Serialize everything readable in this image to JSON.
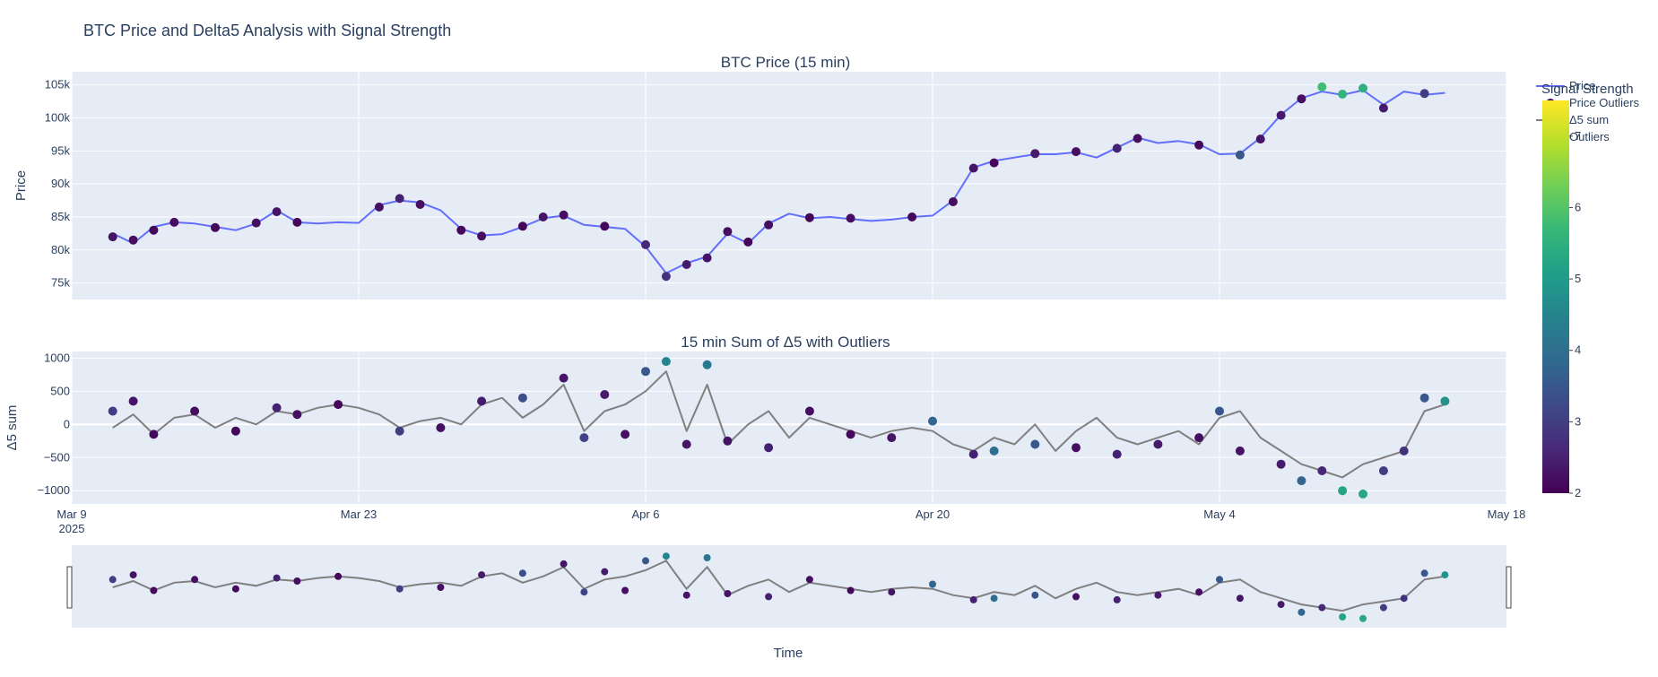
{
  "figure": {
    "title": "BTC Price and Delta5 Analysis with Signal Strength",
    "xlabel": "Time"
  },
  "colors": {
    "plot_bg": "#e5ecf6",
    "grid": "#ffffff",
    "text": "#2a3f5f",
    "price_line": "#636efa",
    "delta_line": "#808080",
    "rangeslider_border": "#444444"
  },
  "x_axis": {
    "type": "date",
    "range": [
      "2025-03-09",
      "2025-05-18"
    ],
    "ticks": [
      {
        "date": "2025-03-09",
        "label": "Mar 9",
        "sublabel": "2025"
      },
      {
        "date": "2025-03-23",
        "label": "Mar 23",
        "sublabel": ""
      },
      {
        "date": "2025-04-06",
        "label": "Apr 6",
        "sublabel": ""
      },
      {
        "date": "2025-04-20",
        "label": "Apr 20",
        "sublabel": ""
      },
      {
        "date": "2025-05-04",
        "label": "May 4",
        "sublabel": ""
      },
      {
        "date": "2025-05-18",
        "label": "May 18",
        "sublabel": ""
      }
    ],
    "rangeslider": true
  },
  "legend": {
    "position": "top-right",
    "items": [
      {
        "label": "Price",
        "symbol": "line",
        "color": "#636efa"
      },
      {
        "label": "Price Outliers",
        "symbol": "marker",
        "color": "#440154"
      },
      {
        "label": "Δ5 sum",
        "symbol": "line",
        "color": "#808080"
      },
      {
        "label": "Outliers",
        "symbol": "marker",
        "color": "#440154"
      }
    ]
  },
  "colorbar": {
    "title": "Signal Strength",
    "colorscale": "Viridis",
    "range": [
      2,
      7.5
    ],
    "ticks": [
      {
        "value": 2,
        "label": "2"
      },
      {
        "value": 3,
        "label": "3"
      },
      {
        "value": 4,
        "label": "4"
      },
      {
        "value": 5,
        "label": "5"
      },
      {
        "value": 6,
        "label": "6"
      },
      {
        "value": 7,
        "label": "7"
      }
    ]
  },
  "chart_data": [
    {
      "type": "line",
      "title": "BTC Price (15 min)",
      "ylabel": "Price",
      "ylim": [
        72500,
        107000
      ],
      "yticks": [
        {
          "value": 75000,
          "label": "75k"
        },
        {
          "value": 80000,
          "label": "80k"
        },
        {
          "value": 85000,
          "label": "85k"
        },
        {
          "value": 90000,
          "label": "90k"
        },
        {
          "value": 95000,
          "label": "95k"
        },
        {
          "value": 100000,
          "label": "100k"
        },
        {
          "value": 105000,
          "label": "105k"
        }
      ],
      "series": [
        {
          "name": "Price",
          "style": "line",
          "x": [
            "2025-03-11",
            "2025-03-12",
            "2025-03-13",
            "2025-03-14",
            "2025-03-15",
            "2025-03-16",
            "2025-03-17",
            "2025-03-18",
            "2025-03-19",
            "2025-03-20",
            "2025-03-21",
            "2025-03-22",
            "2025-03-23",
            "2025-03-24",
            "2025-03-25",
            "2025-03-26",
            "2025-03-27",
            "2025-03-28",
            "2025-03-29",
            "2025-03-30",
            "2025-03-31",
            "2025-04-01",
            "2025-04-02",
            "2025-04-03",
            "2025-04-04",
            "2025-04-05",
            "2025-04-06",
            "2025-04-07",
            "2025-04-08",
            "2025-04-09",
            "2025-04-10",
            "2025-04-11",
            "2025-04-12",
            "2025-04-13",
            "2025-04-14",
            "2025-04-15",
            "2025-04-16",
            "2025-04-17",
            "2025-04-18",
            "2025-04-19",
            "2025-04-20",
            "2025-04-21",
            "2025-04-22",
            "2025-04-23",
            "2025-04-24",
            "2025-04-25",
            "2025-04-26",
            "2025-04-27",
            "2025-04-28",
            "2025-04-29",
            "2025-04-30",
            "2025-05-01",
            "2025-05-02",
            "2025-05-03",
            "2025-05-04",
            "2025-05-05",
            "2025-05-06",
            "2025-05-07",
            "2025-05-08",
            "2025-05-09",
            "2025-05-10",
            "2025-05-11",
            "2025-05-12",
            "2025-05-13",
            "2025-05-14",
            "2025-05-15"
          ],
          "values": [
            82500,
            81000,
            83500,
            84200,
            84000,
            83500,
            83000,
            84000,
            86000,
            84200,
            84000,
            84200,
            84100,
            86800,
            87500,
            87200,
            86000,
            83200,
            82200,
            82400,
            83500,
            84800,
            85200,
            83800,
            83500,
            83200,
            80500,
            76500,
            78000,
            79000,
            82500,
            81000,
            84000,
            85500,
            84800,
            85000,
            84700,
            84400,
            84600,
            85000,
            85200,
            87500,
            92500,
            93500,
            94000,
            94500,
            94500,
            94800,
            94000,
            95500,
            97000,
            96200,
            96500,
            96000,
            94500,
            94600,
            97000,
            100500,
            103000,
            104000,
            103500,
            104200,
            102000,
            104000,
            103500,
            103800
          ]
        },
        {
          "name": "Price Outliers",
          "style": "markers",
          "x": [
            "2025-03-11",
            "2025-03-12",
            "2025-03-13",
            "2025-03-14",
            "2025-03-16",
            "2025-03-18",
            "2025-03-19",
            "2025-03-20",
            "2025-03-24",
            "2025-03-25",
            "2025-03-26",
            "2025-03-28",
            "2025-03-29",
            "2025-03-31",
            "2025-04-01",
            "2025-04-02",
            "2025-04-04",
            "2025-04-06",
            "2025-04-07",
            "2025-04-08",
            "2025-04-09",
            "2025-04-10",
            "2025-04-11",
            "2025-04-12",
            "2025-04-14",
            "2025-04-16",
            "2025-04-19",
            "2025-04-21",
            "2025-04-22",
            "2025-04-23",
            "2025-04-25",
            "2025-04-27",
            "2025-04-29",
            "2025-04-30",
            "2025-05-03",
            "2025-05-05",
            "2025-05-06",
            "2025-05-07",
            "2025-05-08",
            "2025-05-09",
            "2025-05-10",
            "2025-05-11",
            "2025-05-12",
            "2025-05-14"
          ],
          "values": [
            82000,
            81500,
            83000,
            84200,
            83400,
            84100,
            85800,
            84200,
            86500,
            87800,
            86900,
            83000,
            82100,
            83600,
            85000,
            85300,
            83600,
            80800,
            76000,
            77800,
            78800,
            82800,
            81200,
            83800,
            84900,
            84800,
            85000,
            87300,
            92400,
            93200,
            94600,
            94900,
            95400,
            96900,
            95900,
            94400,
            96800,
            100400,
            102900,
            104700,
            103600,
            104500,
            101500,
            103700
          ],
          "strength": [
            2.3,
            2.2,
            2.1,
            2.2,
            2.1,
            2.2,
            2.3,
            2.1,
            2.2,
            2.5,
            2.2,
            2.1,
            2.2,
            2.1,
            2.3,
            2.2,
            2.1,
            2.6,
            2.8,
            2.4,
            2.3,
            2.2,
            2.1,
            2.2,
            2.1,
            2.2,
            2.1,
            2.2,
            2.3,
            2.1,
            2.4,
            2.2,
            2.5,
            2.2,
            2.1,
            3.5,
            2.3,
            2.4,
            2.2,
            5.8,
            5.6,
            5.5,
            2.4,
            3.0
          ]
        }
      ]
    },
    {
      "type": "line",
      "title": "15 min Sum of Δ5 with Outliers",
      "ylabel": "Δ5 sum",
      "ylim": [
        -1200,
        1100
      ],
      "yticks": [
        {
          "value": -1000,
          "label": "−1000"
        },
        {
          "value": -500,
          "label": "−500"
        },
        {
          "value": 0,
          "label": "0"
        },
        {
          "value": 500,
          "label": "500"
        },
        {
          "value": 1000,
          "label": "1000"
        }
      ],
      "series": [
        {
          "name": "Δ5 sum",
          "style": "line",
          "x": [
            "2025-03-11",
            "2025-03-12",
            "2025-03-13",
            "2025-03-14",
            "2025-03-15",
            "2025-03-16",
            "2025-03-17",
            "2025-03-18",
            "2025-03-19",
            "2025-03-20",
            "2025-03-21",
            "2025-03-22",
            "2025-03-23",
            "2025-03-24",
            "2025-03-25",
            "2025-03-26",
            "2025-03-27",
            "2025-03-28",
            "2025-03-29",
            "2025-03-30",
            "2025-03-31",
            "2025-04-01",
            "2025-04-02",
            "2025-04-03",
            "2025-04-04",
            "2025-04-05",
            "2025-04-06",
            "2025-04-07",
            "2025-04-08",
            "2025-04-09",
            "2025-04-10",
            "2025-04-11",
            "2025-04-12",
            "2025-04-13",
            "2025-04-14",
            "2025-04-15",
            "2025-04-16",
            "2025-04-17",
            "2025-04-18",
            "2025-04-19",
            "2025-04-20",
            "2025-04-21",
            "2025-04-22",
            "2025-04-23",
            "2025-04-24",
            "2025-04-25",
            "2025-04-26",
            "2025-04-27",
            "2025-04-28",
            "2025-04-29",
            "2025-04-30",
            "2025-05-01",
            "2025-05-02",
            "2025-05-03",
            "2025-05-04",
            "2025-05-05",
            "2025-05-06",
            "2025-05-07",
            "2025-05-08",
            "2025-05-09",
            "2025-05-10",
            "2025-05-11",
            "2025-05-12",
            "2025-05-13",
            "2025-05-14",
            "2025-05-15"
          ],
          "values": [
            -50,
            150,
            -150,
            100,
            150,
            -50,
            100,
            0,
            200,
            150,
            250,
            300,
            250,
            150,
            -50,
            50,
            100,
            0,
            300,
            400,
            100,
            300,
            600,
            -100,
            200,
            300,
            500,
            800,
            -100,
            600,
            -300,
            0,
            200,
            -200,
            100,
            0,
            -100,
            -200,
            -100,
            -50,
            -100,
            -300,
            -400,
            -200,
            -300,
            0,
            -400,
            -100,
            100,
            -200,
            -300,
            -200,
            -100,
            -300,
            100,
            200,
            -200,
            -400,
            -600,
            -700,
            -800,
            -600,
            -500,
            -400,
            200,
            300
          ]
        },
        {
          "name": "Outliers",
          "style": "markers",
          "x": [
            "2025-03-11",
            "2025-03-12",
            "2025-03-13",
            "2025-03-15",
            "2025-03-17",
            "2025-03-19",
            "2025-03-20",
            "2025-03-22",
            "2025-03-25",
            "2025-03-27",
            "2025-03-29",
            "2025-03-31",
            "2025-04-02",
            "2025-04-03",
            "2025-04-04",
            "2025-04-05",
            "2025-04-06",
            "2025-04-07",
            "2025-04-08",
            "2025-04-09",
            "2025-04-10",
            "2025-04-12",
            "2025-04-14",
            "2025-04-16",
            "2025-04-18",
            "2025-04-20",
            "2025-04-22",
            "2025-04-23",
            "2025-04-25",
            "2025-04-27",
            "2025-04-29",
            "2025-05-01",
            "2025-05-03",
            "2025-05-04",
            "2025-05-05",
            "2025-05-07",
            "2025-05-08",
            "2025-05-09",
            "2025-05-10",
            "2025-05-11",
            "2025-05-12",
            "2025-05-13",
            "2025-05-14",
            "2025-05-15"
          ],
          "values": [
            200,
            350,
            -150,
            200,
            -100,
            250,
            150,
            300,
            -100,
            -50,
            350,
            400,
            700,
            -200,
            450,
            -150,
            800,
            950,
            -300,
            900,
            -250,
            -350,
            200,
            -150,
            -200,
            50,
            -450,
            -400,
            -300,
            -350,
            -450,
            -300,
            -200,
            200,
            -400,
            -600,
            -850,
            -700,
            -1000,
            -1050,
            -700,
            -400,
            400,
            350
          ],
          "strength": [
            3.0,
            2.3,
            2.1,
            2.2,
            2.1,
            2.5,
            2.2,
            2.1,
            3.0,
            2.2,
            2.4,
            3.3,
            2.3,
            3.1,
            2.4,
            2.2,
            3.5,
            4.5,
            2.3,
            4.2,
            2.3,
            2.5,
            2.2,
            2.1,
            2.3,
            3.8,
            2.5,
            4.0,
            3.5,
            2.2,
            2.5,
            2.4,
            2.2,
            3.5,
            2.3,
            2.4,
            3.8,
            2.6,
            5.2,
            5.3,
            3.0,
            2.8,
            3.5,
            4.8
          ]
        }
      ]
    }
  ]
}
